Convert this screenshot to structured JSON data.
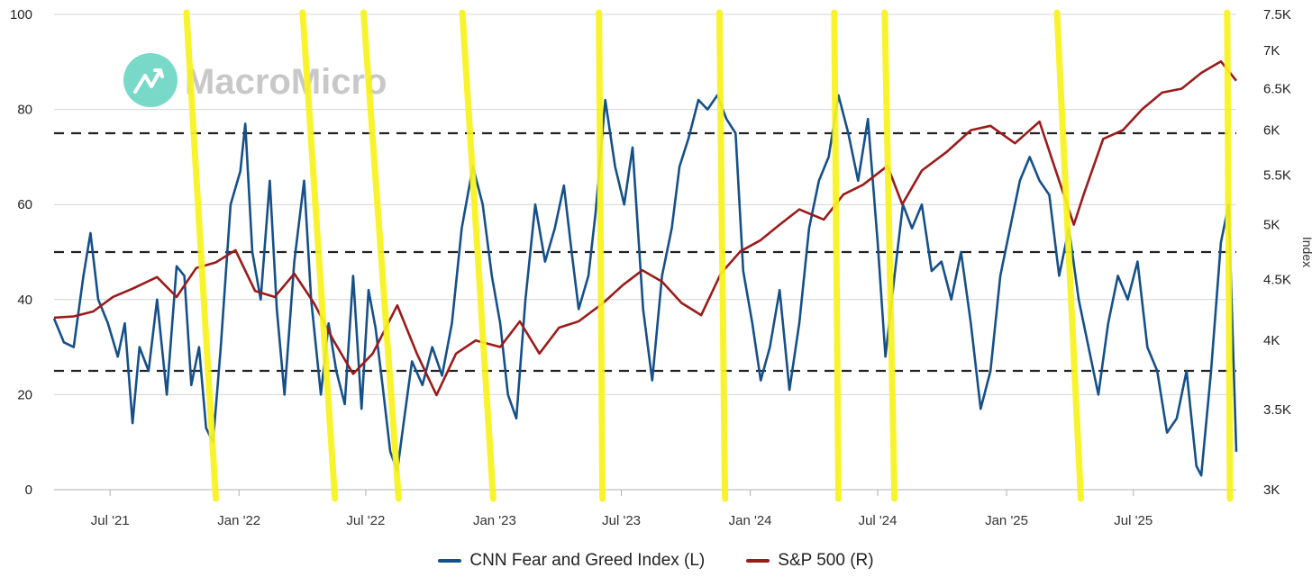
{
  "watermark": {
    "text": "MacroMicro",
    "color": "#79d9c8"
  },
  "chart_data": {
    "type": "line",
    "x_range": [
      "2021-04-12",
      "2025-11-25"
    ],
    "x_tick_labels": [
      {
        "date": "2021-07-01",
        "label": "Jul '21"
      },
      {
        "date": "2022-01-01",
        "label": "Jan '22"
      },
      {
        "date": "2022-07-01",
        "label": "Jul '22"
      },
      {
        "date": "2023-01-01",
        "label": "Jan '23"
      },
      {
        "date": "2023-07-01",
        "label": "Jul '23"
      },
      {
        "date": "2024-01-01",
        "label": "Jan '24"
      },
      {
        "date": "2024-07-01",
        "label": "Jul '24"
      },
      {
        "date": "2025-01-01",
        "label": "Jan '25"
      },
      {
        "date": "2025-07-01",
        "label": "Jul '25"
      }
    ],
    "y_left": {
      "min": 0,
      "max": 100,
      "ticks": [
        0,
        20,
        40,
        60,
        80,
        100
      ]
    },
    "y_right": {
      "scale": "log",
      "min": 3000,
      "max": 7500,
      "title": "Index",
      "ticks": [
        {
          "value": 3000,
          "label": "3K"
        },
        {
          "value": 3500,
          "label": "3.5K"
        },
        {
          "value": 4000,
          "label": "4K"
        },
        {
          "value": 4500,
          "label": "4.5K"
        },
        {
          "value": 5000,
          "label": "5K"
        },
        {
          "value": 5500,
          "label": "5.5K"
        },
        {
          "value": 6000,
          "label": "6K"
        },
        {
          "value": 6500,
          "label": "6.5K"
        },
        {
          "value": 7000,
          "label": "7K"
        },
        {
          "value": 7500,
          "label": "7.5K"
        }
      ]
    },
    "reference_lines_left": [
      25,
      50,
      75
    ],
    "grid": true,
    "legend_position": "bottom",
    "series": [
      {
        "name": "CNN Fear and Greed Index (L)",
        "axis": "left",
        "color": "#15508a",
        "points": [
          [
            "2021-04-12",
            36
          ],
          [
            "2021-04-26",
            31
          ],
          [
            "2021-05-10",
            30
          ],
          [
            "2021-05-24",
            45
          ],
          [
            "2021-06-03",
            54
          ],
          [
            "2021-06-14",
            40
          ],
          [
            "2021-06-28",
            35
          ],
          [
            "2021-07-12",
            28
          ],
          [
            "2021-07-22",
            35
          ],
          [
            "2021-08-02",
            14
          ],
          [
            "2021-08-12",
            30
          ],
          [
            "2021-08-25",
            25
          ],
          [
            "2021-09-06",
            40
          ],
          [
            "2021-09-20",
            20
          ],
          [
            "2021-10-04",
            47
          ],
          [
            "2021-10-15",
            45
          ],
          [
            "2021-10-25",
            22
          ],
          [
            "2021-11-05",
            30
          ],
          [
            "2021-11-15",
            13
          ],
          [
            "2021-11-25",
            10
          ],
          [
            "2021-12-06",
            30
          ],
          [
            "2021-12-20",
            60
          ],
          [
            "2022-01-03",
            67
          ],
          [
            "2022-01-10",
            77
          ],
          [
            "2022-01-20",
            50
          ],
          [
            "2022-02-01",
            40
          ],
          [
            "2022-02-14",
            65
          ],
          [
            "2022-02-24",
            38
          ],
          [
            "2022-03-07",
            20
          ],
          [
            "2022-03-21",
            48
          ],
          [
            "2022-04-04",
            65
          ],
          [
            "2022-04-14",
            40
          ],
          [
            "2022-04-28",
            20
          ],
          [
            "2022-05-09",
            35
          ],
          [
            "2022-05-20",
            25
          ],
          [
            "2022-06-01",
            18
          ],
          [
            "2022-06-13",
            45
          ],
          [
            "2022-06-25",
            17
          ],
          [
            "2022-07-05",
            42
          ],
          [
            "2022-07-15",
            34
          ],
          [
            "2022-07-25",
            22
          ],
          [
            "2022-08-05",
            8
          ],
          [
            "2022-08-15",
            4
          ],
          [
            "2022-08-25",
            15
          ],
          [
            "2022-09-05",
            27
          ],
          [
            "2022-09-20",
            22
          ],
          [
            "2022-10-04",
            30
          ],
          [
            "2022-10-18",
            24
          ],
          [
            "2022-11-01",
            35
          ],
          [
            "2022-11-15",
            55
          ],
          [
            "2022-12-01",
            68
          ],
          [
            "2022-12-15",
            60
          ],
          [
            "2022-12-28",
            45
          ],
          [
            "2023-01-09",
            35
          ],
          [
            "2023-01-20",
            20
          ],
          [
            "2023-02-01",
            15
          ],
          [
            "2023-02-14",
            40
          ],
          [
            "2023-02-28",
            60
          ],
          [
            "2023-03-14",
            48
          ],
          [
            "2023-03-28",
            55
          ],
          [
            "2023-04-10",
            64
          ],
          [
            "2023-04-21",
            50
          ],
          [
            "2023-05-01",
            38
          ],
          [
            "2023-05-15",
            45
          ],
          [
            "2023-05-25",
            58
          ],
          [
            "2023-06-08",
            82
          ],
          [
            "2023-06-22",
            68
          ],
          [
            "2023-07-05",
            60
          ],
          [
            "2023-07-17",
            72
          ],
          [
            "2023-08-01",
            38
          ],
          [
            "2023-08-14",
            23
          ],
          [
            "2023-08-28",
            45
          ],
          [
            "2023-09-11",
            55
          ],
          [
            "2023-09-22",
            68
          ],
          [
            "2023-10-05",
            74
          ],
          [
            "2023-10-19",
            82
          ],
          [
            "2023-11-01",
            80
          ],
          [
            "2023-11-15",
            83
          ],
          [
            "2023-11-28",
            78
          ],
          [
            "2023-12-11",
            75
          ],
          [
            "2023-12-22",
            46
          ],
          [
            "2024-01-04",
            35
          ],
          [
            "2024-01-16",
            23
          ],
          [
            "2024-01-29",
            30
          ],
          [
            "2024-02-12",
            42
          ],
          [
            "2024-02-26",
            21
          ],
          [
            "2024-03-11",
            35
          ],
          [
            "2024-03-25",
            55
          ],
          [
            "2024-04-08",
            65
          ],
          [
            "2024-04-22",
            70
          ],
          [
            "2024-05-06",
            83
          ],
          [
            "2024-05-20",
            75
          ],
          [
            "2024-06-03",
            65
          ],
          [
            "2024-06-17",
            78
          ],
          [
            "2024-07-01",
            52
          ],
          [
            "2024-07-12",
            28
          ],
          [
            "2024-07-25",
            45
          ],
          [
            "2024-08-06",
            60
          ],
          [
            "2024-08-19",
            55
          ],
          [
            "2024-09-02",
            60
          ],
          [
            "2024-09-16",
            46
          ],
          [
            "2024-09-30",
            48
          ],
          [
            "2024-10-14",
            40
          ],
          [
            "2024-10-28",
            50
          ],
          [
            "2024-11-11",
            35
          ],
          [
            "2024-11-25",
            17
          ],
          [
            "2024-12-09",
            25
          ],
          [
            "2024-12-23",
            45
          ],
          [
            "2025-01-06",
            55
          ],
          [
            "2025-01-20",
            65
          ],
          [
            "2025-02-03",
            70
          ],
          [
            "2025-02-17",
            65
          ],
          [
            "2025-03-03",
            62
          ],
          [
            "2025-03-17",
            45
          ],
          [
            "2025-03-31",
            55
          ],
          [
            "2025-04-14",
            40
          ],
          [
            "2025-04-28",
            30
          ],
          [
            "2025-05-12",
            20
          ],
          [
            "2025-05-26",
            35
          ],
          [
            "2025-06-09",
            45
          ],
          [
            "2025-06-23",
            40
          ],
          [
            "2025-07-07",
            48
          ],
          [
            "2025-07-21",
            30
          ],
          [
            "2025-08-04",
            25
          ],
          [
            "2025-08-18",
            12
          ],
          [
            "2025-09-01",
            15
          ],
          [
            "2025-09-15",
            25
          ],
          [
            "2025-09-29",
            5
          ],
          [
            "2025-10-06",
            3
          ],
          [
            "2025-10-20",
            25
          ],
          [
            "2025-11-03",
            52
          ],
          [
            "2025-11-14",
            60
          ],
          [
            "2025-11-25",
            8
          ]
        ]
      },
      {
        "name": "S&P 500 (R)",
        "axis": "right",
        "color": "#9b1b1b",
        "points": [
          [
            "2021-04-12",
            4180
          ],
          [
            "2021-05-10",
            4190
          ],
          [
            "2021-06-07",
            4230
          ],
          [
            "2021-07-05",
            4350
          ],
          [
            "2021-08-02",
            4420
          ],
          [
            "2021-09-06",
            4520
          ],
          [
            "2021-10-04",
            4350
          ],
          [
            "2021-11-01",
            4600
          ],
          [
            "2021-11-29",
            4650
          ],
          [
            "2021-12-27",
            4760
          ],
          [
            "2022-01-24",
            4400
          ],
          [
            "2022-02-21",
            4350
          ],
          [
            "2022-03-21",
            4550
          ],
          [
            "2022-04-18",
            4300
          ],
          [
            "2022-05-16",
            4000
          ],
          [
            "2022-06-13",
            3750
          ],
          [
            "2022-07-11",
            3900
          ],
          [
            "2022-08-15",
            4280
          ],
          [
            "2022-09-12",
            3900
          ],
          [
            "2022-10-10",
            3600
          ],
          [
            "2022-11-07",
            3900
          ],
          [
            "2022-12-05",
            4000
          ],
          [
            "2023-01-09",
            3950
          ],
          [
            "2023-02-06",
            4150
          ],
          [
            "2023-03-06",
            3900
          ],
          [
            "2023-04-03",
            4100
          ],
          [
            "2023-05-01",
            4150
          ],
          [
            "2023-06-05",
            4300
          ],
          [
            "2023-07-03",
            4450
          ],
          [
            "2023-07-31",
            4580
          ],
          [
            "2023-08-28",
            4480
          ],
          [
            "2023-09-25",
            4300
          ],
          [
            "2023-10-23",
            4200
          ],
          [
            "2023-11-20",
            4550
          ],
          [
            "2023-12-18",
            4750
          ],
          [
            "2024-01-15",
            4850
          ],
          [
            "2024-02-12",
            5000
          ],
          [
            "2024-03-11",
            5150
          ],
          [
            "2024-04-15",
            5050
          ],
          [
            "2024-05-13",
            5300
          ],
          [
            "2024-06-10",
            5400
          ],
          [
            "2024-07-15",
            5600
          ],
          [
            "2024-08-05",
            5200
          ],
          [
            "2024-09-02",
            5550
          ],
          [
            "2024-10-07",
            5750
          ],
          [
            "2024-11-11",
            6000
          ],
          [
            "2024-12-09",
            6050
          ],
          [
            "2025-01-13",
            5850
          ],
          [
            "2025-02-17",
            6100
          ],
          [
            "2025-03-10",
            5600
          ],
          [
            "2025-04-07",
            5000
          ],
          [
            "2025-04-21",
            5300
          ],
          [
            "2025-05-19",
            5900
          ],
          [
            "2025-06-16",
            6000
          ],
          [
            "2025-07-14",
            6250
          ],
          [
            "2025-08-11",
            6450
          ],
          [
            "2025-09-08",
            6500
          ],
          [
            "2025-10-06",
            6700
          ],
          [
            "2025-11-03",
            6850
          ],
          [
            "2025-11-25",
            6600
          ]
        ]
      }
    ]
  },
  "annotations": {
    "color": "#f8f31c",
    "description": "yellow hand-drawn slanted lines marking sentiment lows",
    "lines": [
      {
        "top_date": "2021-10-18",
        "bottom_date": "2021-11-29"
      },
      {
        "top_date": "2022-04-02",
        "bottom_date": "2022-05-18"
      },
      {
        "top_date": "2022-06-28",
        "bottom_date": "2022-08-17"
      },
      {
        "top_date": "2022-11-16",
        "bottom_date": "2022-12-30"
      },
      {
        "top_date": "2023-05-30",
        "bottom_date": "2023-06-04"
      },
      {
        "top_date": "2023-11-18",
        "bottom_date": "2023-11-26"
      },
      {
        "top_date": "2024-04-30",
        "bottom_date": "2024-05-06"
      },
      {
        "top_date": "2024-07-11",
        "bottom_date": "2024-07-25"
      },
      {
        "top_date": "2025-03-14",
        "bottom_date": "2025-04-17"
      },
      {
        "top_date": "2025-11-12",
        "bottom_date": "2025-11-16"
      }
    ]
  },
  "legend": [
    {
      "label": "CNN Fear and Greed Index (L)",
      "color": "#15508a"
    },
    {
      "label": "S&P 500 (R)",
      "color": "#9b1b1b"
    }
  ]
}
